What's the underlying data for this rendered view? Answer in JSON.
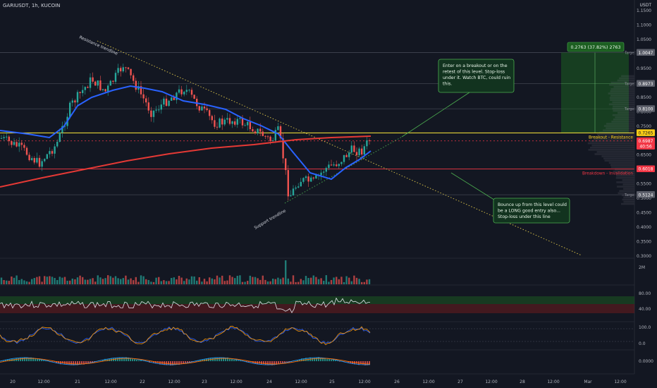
{
  "header": {
    "symbol_line": "GARIUSDT, 1h, KUCOIN",
    "currency": "USDT"
  },
  "colors": {
    "background": "#131722",
    "up": "#26a69a",
    "down": "#ef5350",
    "ema_fast": "#2962ff",
    "ema_slow": "#e53935",
    "resistance": "#ffeb3b",
    "support_line": "#f23645",
    "note_bg": "#12331f",
    "note_border": "#4caf50",
    "profit_box": "#1b5e20"
  },
  "chart_data": {
    "type": "candlestick",
    "price_axis_ticks": [
      "1.1500",
      "1.1000",
      "1.0500",
      "1.0000",
      "0.9500",
      "0.9000",
      "0.8500",
      "0.8000",
      "0.7500",
      "0.7000",
      "0.6500",
      "0.6000",
      "0.5500",
      "0.5000",
      "0.4500",
      "0.4000",
      "0.3500",
      "0.3000"
    ],
    "price_range": [
      0.29,
      1.18
    ],
    "time_axis_labels": [
      "20",
      "12:00",
      "21",
      "12:00",
      "22",
      "12:00",
      "23",
      "12:00",
      "24",
      "12:00",
      "25",
      "12:00",
      "26",
      "12:00",
      "27",
      "12:00",
      "28",
      "12:00",
      "Mar",
      "12:00"
    ],
    "badges": [
      {
        "label": "1.0047",
        "price": 1.0047,
        "color": "#5d606b"
      },
      {
        "label": "0.8973",
        "price": 0.8973,
        "color": "#5d606b"
      },
      {
        "label": "0.8100",
        "price": 0.81,
        "color": "#5d606b"
      },
      {
        "label": "0.7265",
        "price": 0.7265,
        "color": "#f9cc16"
      },
      {
        "label": "0.6987",
        "price": 0.6987,
        "color": "#f23645"
      },
      {
        "label": "40:56",
        "price": 0.68,
        "color": "#f23645"
      },
      {
        "label": "0.6018",
        "price": 0.6018,
        "color": "#f23645"
      },
      {
        "label": "0.5124",
        "price": 0.5124,
        "color": "#5d606b"
      }
    ],
    "target_labels": [
      "Target",
      "Target",
      "Target",
      "Target"
    ],
    "level_labels": {
      "resistance": "Breakout - Resistance",
      "breakdown": "Breakdown - Invalidation"
    },
    "trendline_labels": {
      "resistance": "Resistance trendline",
      "support": "Support trendline"
    },
    "measure_label": "0.2763 (37.82%) 2763",
    "notes": [
      "Enter on a breakout or on the retest of this level. Stop-loss under it. Watch BTC, could ruin this.",
      "Bounce up from this level could be a LONG good entry also... Stop-loss under this line"
    ],
    "indicator_axes": {
      "volume": [
        "2M"
      ],
      "rsi": [
        "80.00",
        "40.00"
      ],
      "stoch": [
        "100.0",
        "0.0"
      ],
      "macd": [
        "0.0000"
      ]
    }
  }
}
